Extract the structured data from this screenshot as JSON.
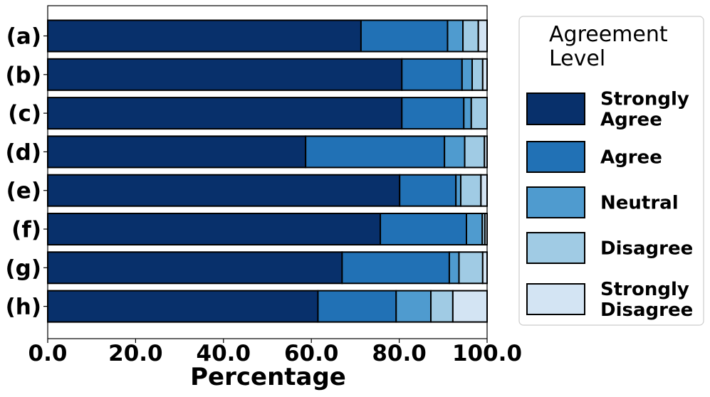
{
  "chart_data": {
    "type": "bar",
    "orientation": "horizontal",
    "stacked": true,
    "categories": [
      "(a)",
      "(b)",
      "(c)",
      "(d)",
      "(e)",
      "(f)",
      "(g)",
      "(h)"
    ],
    "series": [
      {
        "name": "Strongly Agree",
        "color": "#08306b",
        "values": [
          71.3,
          80.6,
          80.6,
          58.7,
          80.1,
          75.7,
          67.0,
          61.5
        ]
      },
      {
        "name": "Agree",
        "color": "#2171b5",
        "values": [
          19.7,
          13.7,
          14.1,
          31.6,
          12.8,
          19.6,
          24.4,
          17.8
        ]
      },
      {
        "name": "Neutral",
        "color": "#4f9bcf",
        "values": [
          3.5,
          2.3,
          1.7,
          4.6,
          1.1,
          3.6,
          2.2,
          7.9
        ]
      },
      {
        "name": "Disagree",
        "color": "#a0cbe4",
        "values": [
          3.5,
          2.4,
          3.6,
          4.5,
          4.6,
          0.6,
          5.4,
          5.0
        ]
      },
      {
        "name": "Strongly Disagree",
        "color": "#d3e4f3",
        "values": [
          2.0,
          1.0,
          0.0,
          0.6,
          1.4,
          0.5,
          1.0,
          7.8
        ]
      }
    ],
    "xlabel": "Percentage",
    "ylabel": "",
    "xlim": [
      0,
      100
    ],
    "xticks": [
      "0.0",
      "20.0",
      "40.0",
      "60.0",
      "80.0",
      "100.0"
    ],
    "grid": false,
    "legend": {
      "title_lines": [
        "Agreement",
        "Level"
      ],
      "placement": "outside-right",
      "entries": [
        {
          "lines": [
            "Strongly",
            "Agree"
          ]
        },
        {
          "lines": [
            "Agree"
          ]
        },
        {
          "lines": [
            "Neutral"
          ]
        },
        {
          "lines": [
            "Disagree"
          ]
        },
        {
          "lines": [
            "Strongly",
            "Disagree"
          ]
        }
      ]
    }
  }
}
